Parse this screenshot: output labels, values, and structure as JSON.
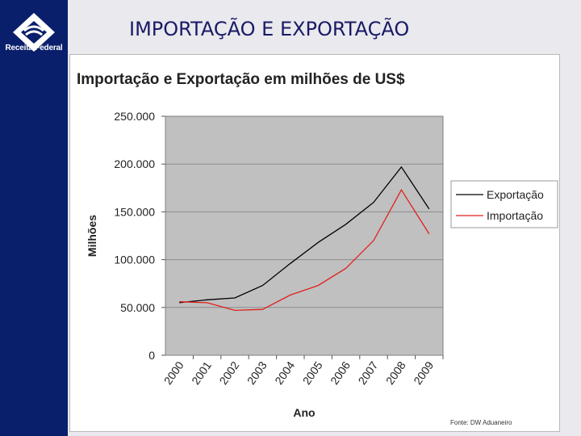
{
  "slide": {
    "title": "IMPORTAÇÃO E EXPORTAÇÃO",
    "logo_text": "Receita Federal",
    "source": "Fonte: DW Aduaneiro"
  },
  "colors": {
    "sidebar": "#0a1f6b",
    "plot_area": "#c0c0c0",
    "exportacao": "#000000",
    "importacao": "#e0201b"
  },
  "chart_data": {
    "type": "line",
    "title": "Importação e Exportação em milhões de US$",
    "xlabel": "Ano",
    "ylabel": "Milhões",
    "categories": [
      "2000",
      "2001",
      "2002",
      "2003",
      "2004",
      "2005",
      "2006",
      "2007",
      "2008",
      "2009"
    ],
    "y_ticks": [
      "0",
      "50.000",
      "100.000",
      "150.000",
      "200.000",
      "250.000"
    ],
    "ylim": [
      0,
      250000
    ],
    "grid": true,
    "legend_position": "right",
    "series": [
      {
        "name": "Exportação",
        "color": "#000000",
        "values": [
          55000,
          58000,
          60000,
          73000,
          96000,
          118000,
          137000,
          160000,
          197000,
          153000
        ]
      },
      {
        "name": "Importação",
        "color": "#e0201b",
        "values": [
          56000,
          55000,
          47000,
          48000,
          63000,
          73000,
          91000,
          120000,
          173000,
          127000
        ]
      }
    ]
  }
}
